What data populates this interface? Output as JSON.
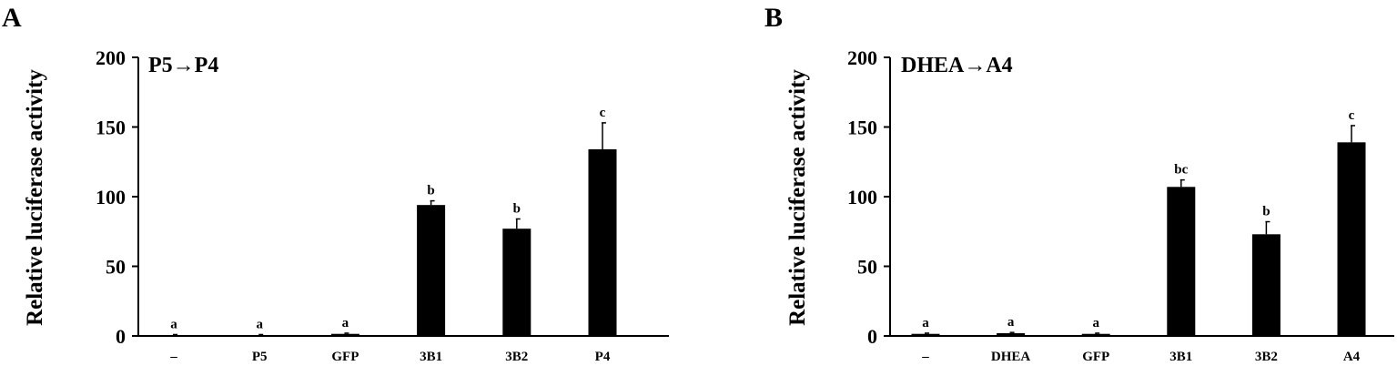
{
  "figure": {
    "panels": [
      {
        "letter": "A",
        "title": "P5→P4"
      },
      {
        "letter": "B",
        "title": "DHEA→A4"
      }
    ]
  },
  "chart_data": [
    {
      "type": "bar",
      "panel": "A",
      "title": "P5→P4",
      "xlabel": "",
      "ylabel": "Relative luciferase activity",
      "ylim": [
        0,
        200
      ],
      "yticks": [
        0,
        50,
        100,
        150,
        200
      ],
      "categories": [
        "–",
        "P5",
        "GFP",
        "3B1",
        "3B2",
        "P4"
      ],
      "values": [
        0.5,
        0.5,
        1.5,
        94,
        77,
        134
      ],
      "errors": [
        0.5,
        0.5,
        0.5,
        3,
        7,
        19
      ],
      "significance": [
        "a",
        "a",
        "a",
        "b",
        "b",
        "c"
      ],
      "bar_color": "#000000",
      "grid": false,
      "legend": "none"
    },
    {
      "type": "bar",
      "panel": "B",
      "title": "DHEA→A4",
      "xlabel": "",
      "ylabel": "Relative luciferase activity",
      "ylim": [
        0,
        200
      ],
      "yticks": [
        0,
        50,
        100,
        150,
        200
      ],
      "categories": [
        "–",
        "DHEA",
        "GFP",
        "3B1",
        "3B2",
        "A4"
      ],
      "values": [
        1.5,
        2,
        1.5,
        107,
        73,
        139
      ],
      "errors": [
        0.5,
        0.5,
        0.5,
        5,
        9,
        12
      ],
      "significance": [
        "a",
        "a",
        "a",
        "bc",
        "b",
        "c"
      ],
      "bar_color": "#000000",
      "grid": false,
      "legend": "none"
    }
  ]
}
